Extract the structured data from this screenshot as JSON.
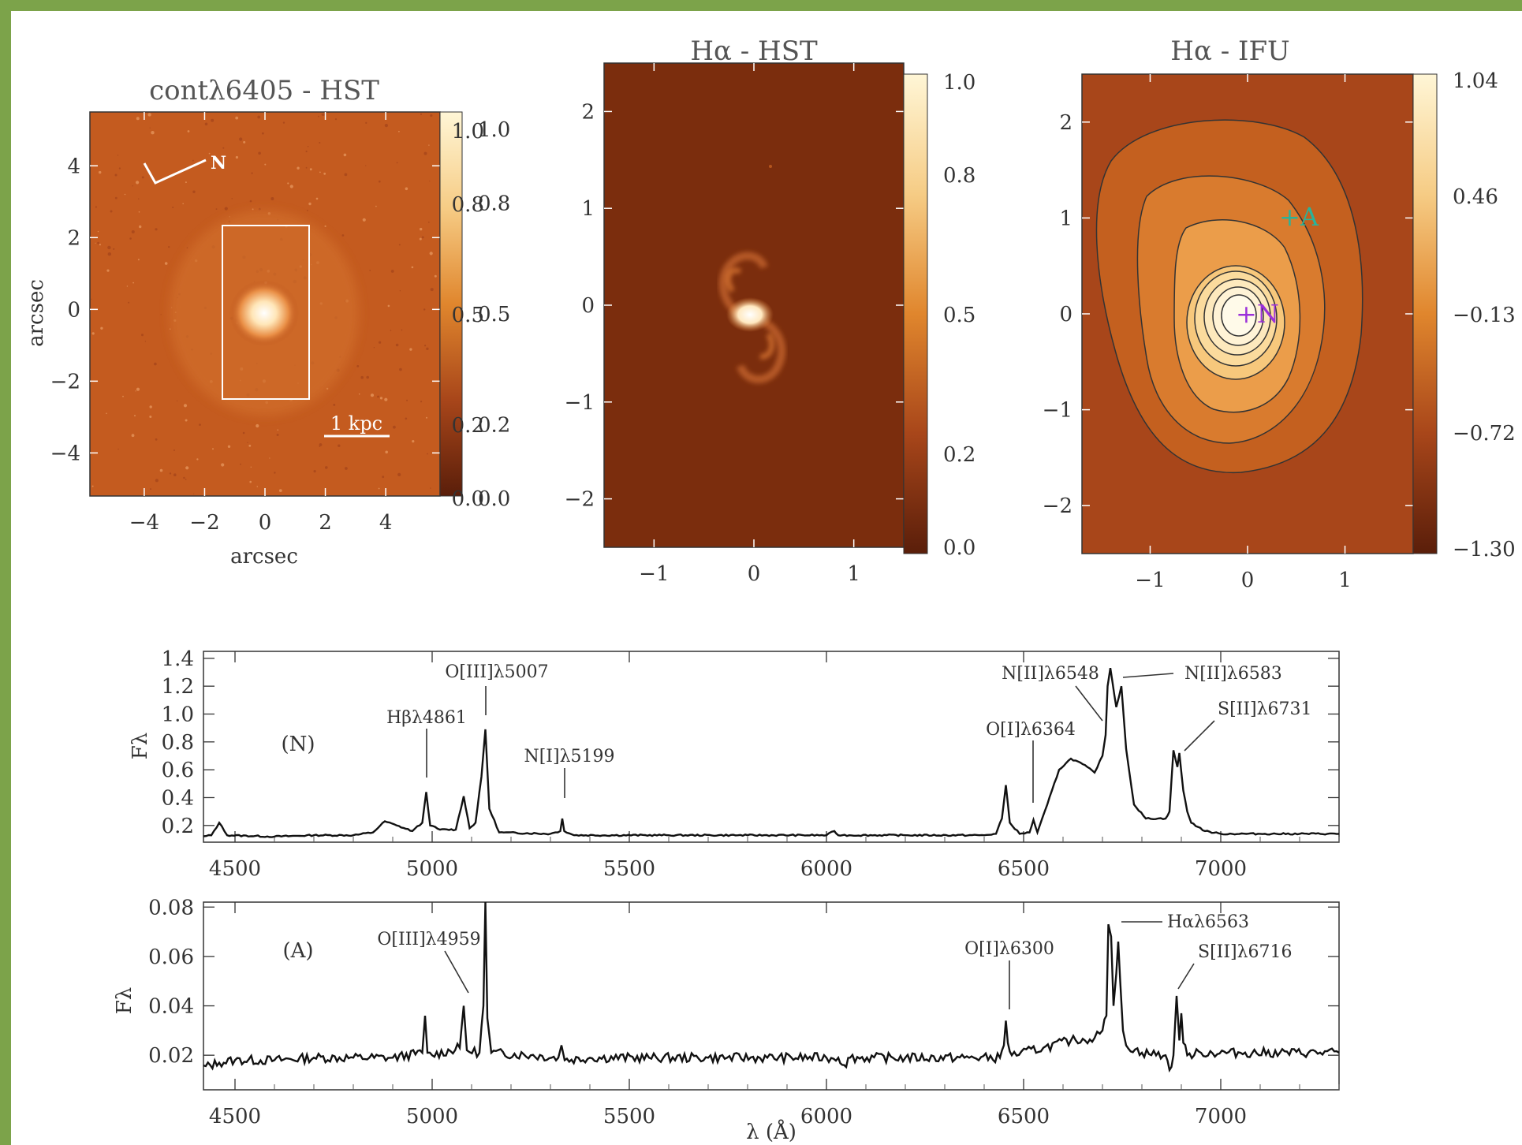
{
  "chart_data": [
    {
      "type": "heatmap",
      "title": "contλ6405 - HST",
      "xlabel": "arcsec",
      "ylabel": "arcsec",
      "xticks": [
        -4,
        -2,
        0,
        2,
        4
      ],
      "yticks": [
        4,
        2,
        0,
        -2,
        -4
      ],
      "xlim": [
        -5.8,
        5.8
      ],
      "ylim": [
        -5.2,
        5.5
      ],
      "colorbar": {
        "ticks": [
          1.0,
          0.8,
          0.5,
          0.2,
          0.0
        ],
        "labels": [
          "1.0",
          "0.8",
          "0.5",
          "0.2",
          "0.0"
        ]
      },
      "annotations": {
        "compass": "N",
        "scale_bar": "1 kpc"
      },
      "box_arcsec": {
        "x": [
          -1.4,
          1.4
        ],
        "y": [
          -2.4,
          2.4
        ]
      }
    },
    {
      "type": "heatmap",
      "title": "Hα - HST",
      "xticks": [
        -1,
        0,
        1
      ],
      "yticks": [
        2,
        1,
        0,
        -1,
        -2
      ],
      "xlim": [
        -1.5,
        1.5
      ],
      "ylim": [
        -2.5,
        2.5
      ],
      "colorbar": {
        "ticks": [
          1.0,
          0.8,
          0.5,
          0.2,
          0.0
        ],
        "labels": [
          "1.0",
          "0.8",
          "0.5",
          "0.2",
          "0.0"
        ]
      }
    },
    {
      "type": "heatmap",
      "title": "Hα - IFU",
      "xticks": [
        -1,
        0,
        1
      ],
      "yticks": [
        2,
        1,
        0,
        -1,
        -2
      ],
      "xlim": [
        -1.7,
        1.7
      ],
      "ylim": [
        -2.5,
        2.5
      ],
      "colorbar": {
        "ticks": [
          1.04,
          0.46,
          -0.13,
          -0.72,
          -1.3
        ],
        "labels": [
          "1.04",
          "0.46",
          "−0.13",
          "−0.72",
          "−1.30"
        ]
      },
      "markers": [
        {
          "label": "+N",
          "x": 0.0,
          "y": 0.0,
          "color": "#9b30d9"
        },
        {
          "label": "+A",
          "x": 0.5,
          "y": 1.0,
          "color": "#2ab39a"
        }
      ]
    },
    {
      "type": "line",
      "panel_label": "(N)",
      "ylabel": "Fλ",
      "xlim": [
        4420,
        7300
      ],
      "ylim": [
        0.08,
        1.45
      ],
      "xticks": [
        4500,
        5000,
        5500,
        6000,
        6500,
        7000
      ],
      "yticks": [
        0.2,
        0.4,
        0.6,
        0.8,
        1.0,
        1.2,
        1.4
      ],
      "ytick_labels": [
        "0.2",
        "0.4",
        "0.6",
        "0.8",
        "1.0",
        "1.2",
        "1.4"
      ],
      "continuum": 0.13,
      "lines": [
        {
          "label": "Hβλ4861",
          "x": 4985
        },
        {
          "label": "O[III]λ5007",
          "x": 5135
        },
        {
          "label": "N[I]λ5199",
          "x": 5330
        },
        {
          "label": "O[I]λ6364",
          "x": 6525
        },
        {
          "label": "N[II]λ6548",
          "x": 6713
        },
        {
          "label": "N[II]λ6583",
          "x": 6748
        },
        {
          "label": "S[II]λ6731",
          "x": 6900
        }
      ],
      "series": [
        {
          "x": [
            4420,
            4440,
            4460,
            4480,
            4600,
            4700,
            4800,
            4850,
            4880,
            4910,
            4950,
            4975,
            4985,
            4995,
            5020,
            5060,
            5080,
            5095,
            5110,
            5125,
            5135,
            5145,
            5170,
            5300,
            5325,
            5330,
            5335,
            5360,
            5600,
            5800,
            6000,
            6020,
            6030,
            6040,
            6200,
            6400,
            6430,
            6445,
            6455,
            6465,
            6490,
            6515,
            6525,
            6535,
            6560,
            6590,
            6620,
            6650,
            6680,
            6700,
            6708,
            6713,
            6720,
            6735,
            6748,
            6760,
            6780,
            6810,
            6860,
            6870,
            6880,
            6890,
            6895,
            6905,
            6915,
            6925,
            6960,
            7000,
            7100,
            7200,
            7300
          ],
          "y": [
            0.12,
            0.13,
            0.22,
            0.13,
            0.12,
            0.13,
            0.13,
            0.15,
            0.23,
            0.2,
            0.16,
            0.22,
            0.44,
            0.2,
            0.17,
            0.17,
            0.41,
            0.18,
            0.22,
            0.55,
            0.89,
            0.32,
            0.15,
            0.14,
            0.16,
            0.25,
            0.16,
            0.13,
            0.13,
            0.13,
            0.13,
            0.16,
            0.13,
            0.13,
            0.13,
            0.13,
            0.14,
            0.25,
            0.49,
            0.22,
            0.14,
            0.15,
            0.24,
            0.15,
            0.35,
            0.6,
            0.68,
            0.64,
            0.58,
            0.7,
            0.85,
            1.2,
            1.33,
            1.05,
            1.2,
            0.75,
            0.35,
            0.25,
            0.25,
            0.3,
            0.74,
            0.62,
            0.72,
            0.45,
            0.3,
            0.22,
            0.16,
            0.14,
            0.14,
            0.14,
            0.14
          ]
        }
      ]
    },
    {
      "type": "line",
      "panel_label": "(A)",
      "xlabel": "λ (Å)",
      "ylabel": "Fλ",
      "xlim": [
        4420,
        7300
      ],
      "ylim": [
        0.006,
        0.082
      ],
      "xticks": [
        4500,
        5000,
        5500,
        6000,
        6500,
        7000
      ],
      "yticks": [
        0.02,
        0.04,
        0.06,
        0.08
      ],
      "ytick_labels": [
        "0.02",
        "0.04",
        "0.06",
        "0.08"
      ],
      "continuum": 0.02,
      "lines": [
        {
          "label": "O[III]λ4959",
          "x": 5085
        },
        {
          "label": "O[I]λ6300",
          "x": 6455
        },
        {
          "label": "Hαλ6563",
          "x": 6725
        },
        {
          "label": "S[II]λ6716",
          "x": 6885
        }
      ],
      "series": [
        {
          "x": [
            4420,
            4460,
            4500,
            4600,
            4700,
            4800,
            4900,
            4975,
            4982,
            4988,
            5000,
            5070,
            5080,
            5088,
            5120,
            5130,
            5135,
            5140,
            5150,
            5250,
            5320,
            5328,
            5336,
            5400,
            5550,
            5700,
            5850,
            6000,
            6030,
            6045,
            6060,
            6200,
            6350,
            6440,
            6450,
            6455,
            6460,
            6470,
            6550,
            6620,
            6680,
            6700,
            6710,
            6715,
            6722,
            6728,
            6735,
            6740,
            6745,
            6752,
            6760,
            6800,
            6860,
            6870,
            6880,
            6888,
            6895,
            6900,
            6905,
            6915,
            6950,
            7050,
            7150,
            7300
          ],
          "y": [
            0.015,
            0.017,
            0.018,
            0.018,
            0.019,
            0.019,
            0.019,
            0.021,
            0.036,
            0.021,
            0.02,
            0.023,
            0.04,
            0.022,
            0.021,
            0.04,
            0.082,
            0.035,
            0.021,
            0.02,
            0.019,
            0.024,
            0.018,
            0.019,
            0.019,
            0.019,
            0.019,
            0.019,
            0.019,
            0.016,
            0.019,
            0.019,
            0.019,
            0.019,
            0.024,
            0.034,
            0.025,
            0.02,
            0.023,
            0.026,
            0.027,
            0.03,
            0.036,
            0.073,
            0.068,
            0.04,
            0.053,
            0.066,
            0.05,
            0.03,
            0.024,
            0.021,
            0.02,
            0.014,
            0.02,
            0.044,
            0.026,
            0.037,
            0.025,
            0.02,
            0.021,
            0.021,
            0.021,
            0.021
          ]
        }
      ]
    }
  ]
}
